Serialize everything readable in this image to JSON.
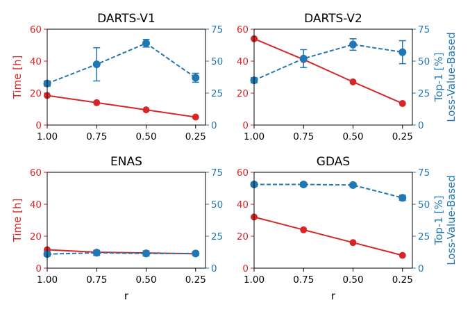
{
  "colors": {
    "time": "#d62728",
    "acc": "#1f77b4",
    "axis": "#000000"
  },
  "shared": {
    "x_ticks": [
      1.0,
      0.75,
      0.5,
      0.25
    ],
    "x_tick_labels": [
      "1.00",
      "0.75",
      "0.50",
      "0.25"
    ],
    "left_ticks": [
      0,
      20,
      40,
      60
    ],
    "left_tick_labels": [
      "0",
      "20",
      "40",
      "60"
    ],
    "right_ticks": [
      0,
      25,
      50,
      75
    ],
    "right_tick_labels": [
      "0",
      "25",
      "50",
      "75"
    ],
    "left_label": "Time [h]",
    "right_label_line1": "Top-1 [%]",
    "right_label_line2": "Loss-Value-Based",
    "x_label": "r"
  },
  "chart_data": [
    {
      "type": "line",
      "title": "DARTS-V1",
      "x": [
        1.0,
        0.75,
        0.5,
        0.25
      ],
      "xlim": [
        1.0,
        0.2
      ],
      "series": [
        {
          "axis": "left",
          "style": "solid",
          "values": [
            18.5,
            14.0,
            9.5,
            5.0
          ]
        },
        {
          "axis": "right",
          "style": "dashed",
          "values": [
            32.5,
            47.5,
            64.0,
            37.0
          ],
          "errors": [
            2.0,
            13.0,
            3.0,
            3.5
          ]
        }
      ],
      "ylim_left": [
        0,
        60
      ],
      "ylim_right": [
        0,
        75
      ]
    },
    {
      "type": "line",
      "title": "DARTS-V2",
      "x": [
        1.0,
        0.75,
        0.5,
        0.25
      ],
      "xlim": [
        1.0,
        0.2
      ],
      "series": [
        {
          "axis": "left",
          "style": "solid",
          "values": [
            54.0,
            41.0,
            27.0,
            13.5
          ]
        },
        {
          "axis": "right",
          "style": "dashed",
          "values": [
            35.0,
            52.0,
            63.0,
            57.0
          ],
          "errors": [
            2.0,
            7.0,
            4.5,
            9.0
          ]
        }
      ],
      "ylim_left": [
        0,
        60
      ],
      "ylim_right": [
        0,
        75
      ]
    },
    {
      "type": "line",
      "title": "ENAS",
      "x": [
        1.0,
        0.75,
        0.5,
        0.25
      ],
      "xlim": [
        1.0,
        0.2
      ],
      "series": [
        {
          "axis": "left",
          "style": "solid",
          "values": [
            11.5,
            10.0,
            9.5,
            9.0
          ]
        },
        {
          "axis": "right",
          "style": "dashed",
          "values": [
            11.0,
            12.0,
            11.5,
            11.5
          ],
          "errors": [
            1.5,
            2.0,
            2.0,
            1.5
          ]
        }
      ],
      "ylim_left": [
        0,
        60
      ],
      "ylim_right": [
        0,
        75
      ]
    },
    {
      "type": "line",
      "title": "GDAS",
      "x": [
        1.0,
        0.75,
        0.5,
        0.25
      ],
      "xlim": [
        1.0,
        0.2
      ],
      "series": [
        {
          "axis": "left",
          "style": "solid",
          "values": [
            32.0,
            24.0,
            16.0,
            8.0
          ]
        },
        {
          "axis": "right",
          "style": "dashed",
          "values": [
            65.5,
            65.5,
            65.0,
            55.0
          ],
          "errors": [
            1.5,
            1.5,
            1.5,
            2.0
          ]
        }
      ],
      "ylim_left": [
        0,
        60
      ],
      "ylim_right": [
        0,
        75
      ]
    }
  ]
}
